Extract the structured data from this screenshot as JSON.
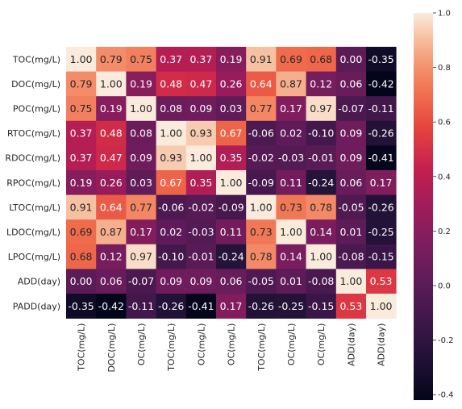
{
  "chart_data": {
    "type": "heatmap",
    "title": "",
    "xlabel": "",
    "ylabel": "",
    "row_labels": [
      "TOC(mg/L)",
      "DOC(mg/L)",
      "POC(mg/L)",
      "RTOC(mg/L)",
      "RDOC(mg/L)",
      "RPOC(mg/L)",
      "LTOC(mg/L)",
      "LDOC(mg/L)",
      "LPOC(mg/L)",
      "ADD(day)",
      "PADD(day)"
    ],
    "col_labels": [
      "TOC(mg/L)",
      "DOC(mg/L)",
      "POC(mg/L)",
      "RTOC(mg/L)",
      "RDOC(mg/L)",
      "RPOC(mg/L)",
      "LTOC(mg/L)",
      "LDOC(mg/L)",
      "LPOC(mg/L)",
      "ADD(day)",
      "PADD(day)"
    ],
    "col_labels_visible": [
      "TOC(mg/L)",
      "DOC(mg/L)",
      "OC(mg/L)",
      "TOC(mg/L)",
      "OC(mg/L)",
      "OC(mg/L)",
      "TOC(mg/L)",
      "OC(mg/L)",
      "OC(mg/L)",
      "ADD(day)",
      "ADD(day)"
    ],
    "values": [
      [
        1.0,
        0.79,
        0.75,
        0.37,
        0.37,
        0.19,
        0.91,
        0.69,
        0.68,
        -0.0,
        -0.35
      ],
      [
        0.79,
        1.0,
        0.19,
        0.48,
        0.47,
        0.26,
        0.64,
        0.87,
        0.12,
        0.06,
        -0.42
      ],
      [
        0.75,
        0.19,
        1.0,
        0.08,
        0.09,
        0.03,
        0.77,
        0.17,
        0.97,
        -0.07,
        -0.11
      ],
      [
        0.37,
        0.48,
        0.08,
        1.0,
        0.93,
        0.67,
        -0.06,
        0.02,
        -0.1,
        0.09,
        -0.26
      ],
      [
        0.37,
        0.47,
        0.09,
        0.93,
        1.0,
        0.35,
        -0.02,
        -0.03,
        -0.01,
        0.09,
        -0.41
      ],
      [
        0.19,
        0.26,
        0.03,
        0.67,
        0.35,
        1.0,
        -0.09,
        0.11,
        -0.24,
        0.06,
        0.17
      ],
      [
        0.91,
        0.64,
        0.77,
        -0.06,
        -0.02,
        -0.09,
        1.0,
        0.73,
        0.78,
        -0.05,
        -0.26
      ],
      [
        0.69,
        0.87,
        0.17,
        0.02,
        -0.03,
        0.11,
        0.73,
        1.0,
        0.14,
        0.01,
        -0.25
      ],
      [
        0.68,
        0.12,
        0.97,
        -0.1,
        -0.01,
        -0.24,
        0.78,
        0.14,
        1.0,
        -0.08,
        -0.15
      ],
      [
        -0.0,
        0.06,
        -0.07,
        0.09,
        0.09,
        0.06,
        -0.05,
        0.01,
        -0.08,
        1.0,
        0.53
      ],
      [
        -0.35,
        -0.42,
        -0.11,
        -0.26,
        -0.41,
        0.17,
        -0.26,
        -0.25,
        -0.15,
        0.53,
        1.0
      ]
    ],
    "value_format": "2 decimals",
    "colormap": "rocket",
    "colorbar": {
      "range": [
        -0.42,
        1.0
      ],
      "ticks": [
        "1.0",
        "0.8",
        "0.6",
        "0.4",
        "0.2",
        "0.0",
        "-0.2",
        "-0.4"
      ]
    },
    "legend_placement": "right",
    "grid": false
  }
}
